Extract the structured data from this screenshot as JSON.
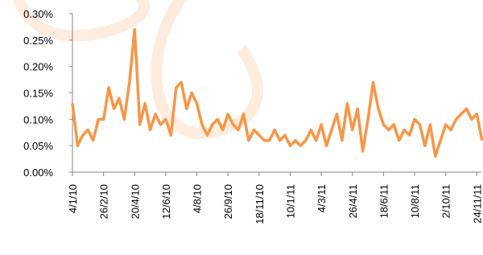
{
  "chart_data": {
    "type": "line",
    "categories": [
      "4/1/10",
      null,
      null,
      null,
      null,
      null,
      "26/2/10",
      null,
      null,
      null,
      null,
      null,
      "20/4/10",
      null,
      null,
      null,
      null,
      null,
      "12/6/10",
      null,
      null,
      null,
      null,
      null,
      "4/8/10",
      null,
      null,
      null,
      null,
      null,
      "26/9/10",
      null,
      null,
      null,
      null,
      null,
      "18/11/10",
      null,
      null,
      null,
      null,
      null,
      "10/1/11",
      null,
      null,
      null,
      null,
      null,
      "4/3/11",
      null,
      null,
      null,
      null,
      null,
      "26/4/11",
      null,
      null,
      null,
      null,
      null,
      "18/6/11",
      null,
      null,
      null,
      null,
      null,
      "10/8/11",
      null,
      null,
      null,
      null,
      null,
      "2/10/11",
      null,
      null,
      null,
      null,
      null,
      "24/11/11",
      null
    ],
    "series": [
      {
        "color": "#f79646",
        "values": [
          0.13,
          0.05,
          0.07,
          0.08,
          0.06,
          0.1,
          0.1,
          0.16,
          0.12,
          0.14,
          0.1,
          0.17,
          0.27,
          0.09,
          0.13,
          0.08,
          0.11,
          0.09,
          0.1,
          0.07,
          0.16,
          0.17,
          0.12,
          0.15,
          0.13,
          0.09,
          0.07,
          0.09,
          0.1,
          0.08,
          0.11,
          0.09,
          0.08,
          0.11,
          0.06,
          0.08,
          0.07,
          0.06,
          0.06,
          0.08,
          0.06,
          0.07,
          0.05,
          0.06,
          0.05,
          0.06,
          0.08,
          0.06,
          0.09,
          0.05,
          0.08,
          0.11,
          0.06,
          0.13,
          0.08,
          0.12,
          0.04,
          0.1,
          0.17,
          0.12,
          0.09,
          0.08,
          0.09,
          0.06,
          0.08,
          0.07,
          0.1,
          0.09,
          0.05,
          0.09,
          0.03,
          0.06,
          0.09,
          0.08,
          0.1,
          0.11,
          0.12,
          0.1,
          0.11,
          0.06
        ]
      }
    ],
    "ylim": [
      0,
      0.3
    ],
    "yticks": [
      {
        "value": 0,
        "label": "0.00%"
      },
      {
        "value": 0.05,
        "label": "0.05%"
      },
      {
        "value": 0.1,
        "label": "0.10%"
      },
      {
        "value": 0.15,
        "label": "0.15%"
      },
      {
        "value": 0.2,
        "label": "0.20%"
      },
      {
        "value": 0.25,
        "label": "0.25%"
      },
      {
        "value": 0.3,
        "label": "0.30%"
      }
    ]
  }
}
